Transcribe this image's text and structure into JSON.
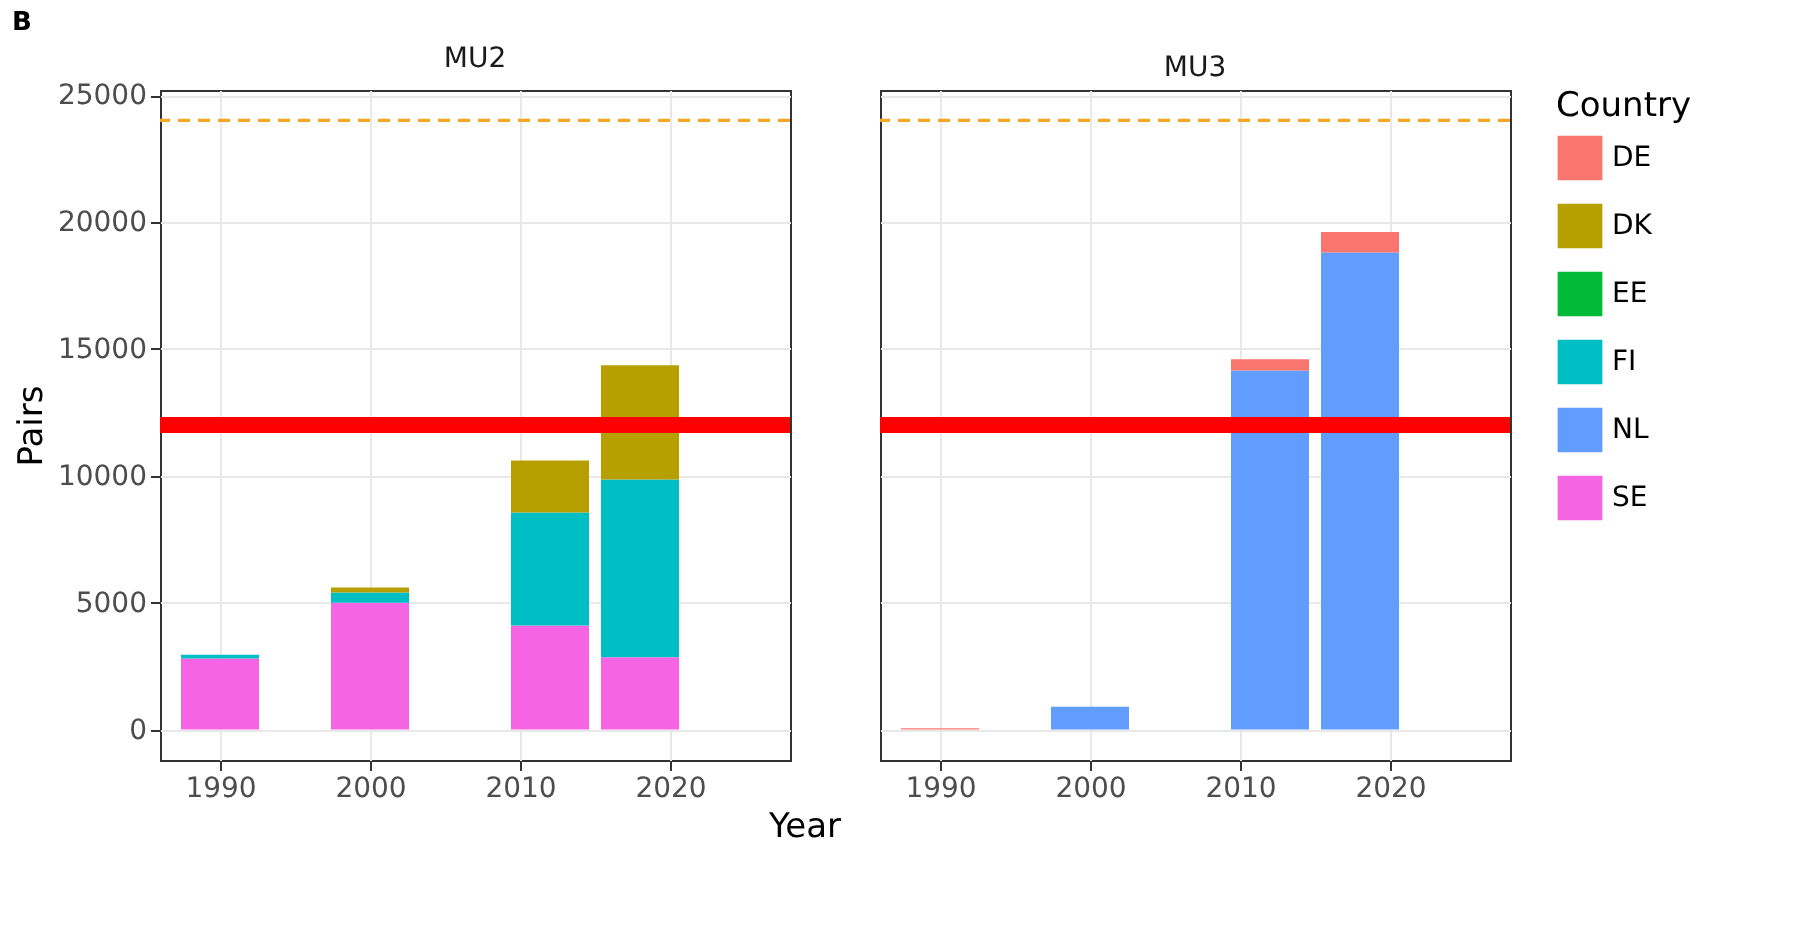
{
  "chart_data": [
    {
      "type": "bar",
      "title": "MU2",
      "annotations": [
        "B"
      ],
      "xlabel": "Year",
      "ylabel": "Pairs",
      "legend_title": "Country",
      "legend": "right",
      "stacked": true,
      "grid": true,
      "x": [
        1990,
        2000,
        2012,
        2018
      ],
      "xlim": [
        1986,
        2028
      ],
      "xticks": [
        1990,
        2000,
        2010,
        2020
      ],
      "ylim": [
        -1200,
        25200
      ],
      "yticks": [
        0,
        5000,
        10000,
        15000,
        20000,
        25000
      ],
      "series": [
        {
          "name": "SE",
          "color": "#f564e3",
          "values": [
            2800,
            5000,
            4100,
            2850
          ]
        },
        {
          "name": "NL",
          "color": "#619cff",
          "values": [
            null,
            null,
            null,
            null
          ]
        },
        {
          "name": "FI",
          "color": "#00bfc4",
          "values": [
            150,
            400,
            4450,
            7000
          ]
        },
        {
          "name": "EE",
          "color": "#00ba38",
          "values": [
            null,
            null,
            null,
            null
          ]
        },
        {
          "name": "DK",
          "color": "#b79f00",
          "values": [
            null,
            200,
            2050,
            4500
          ]
        },
        {
          "name": "DE",
          "color": "#f8766d",
          "values": [
            null,
            null,
            null,
            null
          ]
        }
      ],
      "ref_lines": [
        {
          "axis": "y",
          "value": 24000,
          "color": "#f5a623",
          "line_style": "dashed"
        },
        {
          "axis": "y",
          "value": 12000,
          "color": "#ff0000",
          "line_style": "solid"
        }
      ]
    },
    {
      "type": "bar",
      "title": "MU3",
      "stacked": true,
      "grid": true,
      "tick_labels": "x",
      "x": [
        1990,
        2000,
        2012,
        2018
      ],
      "xlim": [
        1986,
        2028
      ],
      "xticks": [
        1990,
        2000,
        2010,
        2020
      ],
      "ylim": [
        -1200,
        25200
      ],
      "yticks": [
        0,
        5000,
        10000,
        15000,
        20000,
        25000
      ],
      "series": [
        {
          "color": "#619cff",
          "values": [
            null,
            900,
            14150,
            18800
          ]
        },
        {
          "color": "#f8766d",
          "values": [
            50,
            null,
            440,
            800
          ]
        }
      ],
      "ref_lines": [
        {
          "axis": "y",
          "value": 24000,
          "color": "#f5a623",
          "line_style": "dashed"
        },
        {
          "axis": "y",
          "value": 12000,
          "color": "#ff0000",
          "line_style": "solid"
        }
      ]
    }
  ]
}
